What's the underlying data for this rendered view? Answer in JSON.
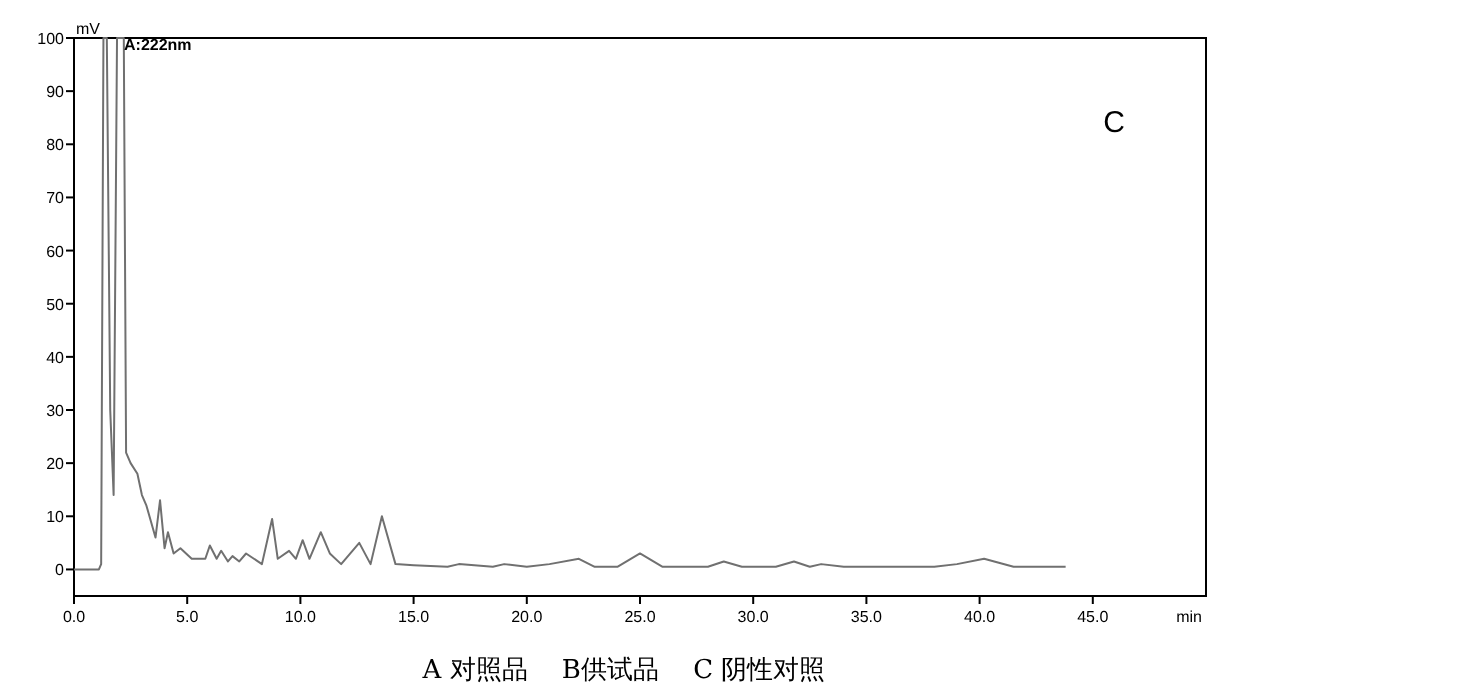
{
  "chart_data": {
    "type": "line",
    "xlabel": "min",
    "ylabel": "mV",
    "color": "#707070",
    "grid": false,
    "xlim": [
      0,
      50
    ],
    "ylim": [
      -5,
      100
    ],
    "xticks": [
      {
        "value": 0,
        "label": "0.0"
      },
      {
        "value": 5,
        "label": "5.0"
      },
      {
        "value": 10,
        "label": "10.0"
      },
      {
        "value": 15,
        "label": "15.0"
      },
      {
        "value": 20,
        "label": "20.0"
      },
      {
        "value": 25,
        "label": "25.0"
      },
      {
        "value": 30,
        "label": "30.0"
      },
      {
        "value": 35,
        "label": "35.0"
      },
      {
        "value": 40,
        "label": "40.0"
      },
      {
        "value": 45,
        "label": "45.0"
      }
    ],
    "yticks": [
      0,
      10,
      20,
      30,
      40,
      50,
      60,
      70,
      80,
      90,
      100
    ],
    "x": [
      0,
      1.1,
      1.2,
      1.3,
      1.45,
      1.6,
      1.75,
      1.9,
      2.2,
      2.3,
      2.5,
      2.8,
      3.0,
      3.2,
      3.6,
      3.8,
      4.0,
      4.15,
      4.4,
      4.7,
      5.2,
      5.8,
      6.0,
      6.3,
      6.5,
      6.8,
      7.0,
      7.3,
      7.6,
      8.3,
      8.75,
      9.0,
      9.5,
      9.8,
      10.1,
      10.4,
      10.9,
      11.3,
      11.8,
      12.6,
      13.1,
      13.6,
      14.2,
      15,
      16.5,
      17,
      18.5,
      19,
      20,
      21,
      22.3,
      23,
      24,
      25,
      26,
      28,
      28.7,
      29.5,
      31,
      31.8,
      32.5,
      33,
      34,
      36,
      38,
      39,
      40.2,
      41.5,
      43.8
    ],
    "values": [
      0,
      0,
      1,
      100,
      100,
      30,
      14,
      100,
      100,
      22,
      20,
      18,
      14,
      12,
      6,
      13,
      4,
      7,
      3,
      4,
      2,
      2,
      4.5,
      2,
      3.5,
      1.5,
      2.5,
      1.5,
      3,
      1,
      9.5,
      2,
      3.5,
      2,
      5.5,
      2,
      7,
      3,
      1,
      5,
      1,
      10,
      1,
      0.8,
      0.5,
      1,
      0.5,
      1,
      0.5,
      1,
      2,
      0.5,
      0.5,
      3,
      0.5,
      0.5,
      1.5,
      0.5,
      0.5,
      1.5,
      0.5,
      1,
      0.5,
      0.5,
      0.5,
      1,
      2,
      0.5,
      0.5
    ],
    "annotations": [
      "A:222nm",
      "C",
      "A 对照品　 B供试品　 C 阴性对照"
    ]
  }
}
